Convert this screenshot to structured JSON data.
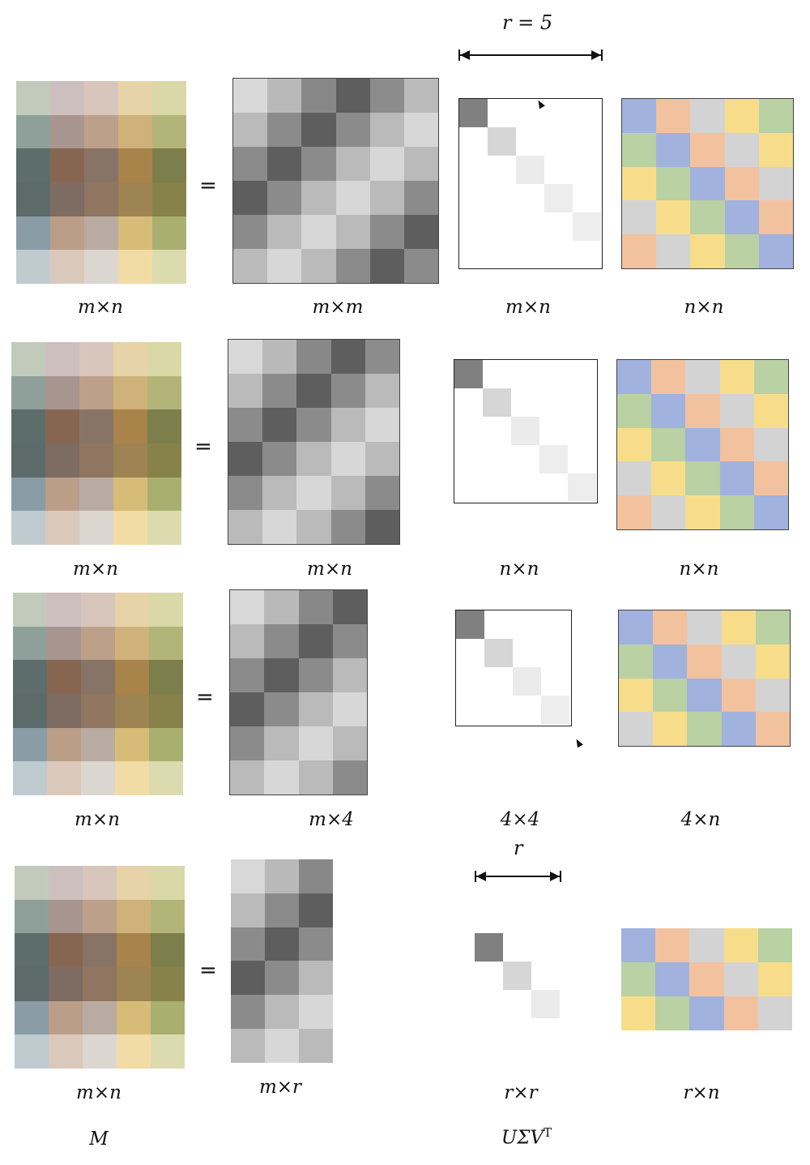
{
  "colors": {
    "photo": [
      [
        "#c2cbbb",
        "#cdbfbe",
        "#d8c6bd",
        "#e7d3a8",
        "#dad8a6"
      ],
      [
        "#8fa09a",
        "#a9958f",
        "#bca08a",
        "#cfb27a",
        "#b3b478"
      ],
      [
        "#5d6d6b",
        "#876651",
        "#887467",
        "#a8844a",
        "#7c7e4c"
      ],
      [
        "#5c6b69",
        "#7e6b62",
        "#907560",
        "#9d8452",
        "#878249"
      ],
      [
        "#8a9da6",
        "#bb9e88",
        "#b9aba2",
        "#d7bc78",
        "#a9b06f"
      ],
      [
        "#bfcbcf",
        "#dac9bb",
        "#dcd6d0",
        "#f2dca6",
        "#dcdbb0"
      ]
    ],
    "gray_u": [
      [
        "#d8d8d8",
        "#b9b9b9",
        "#888888",
        "#5e5e5e",
        "#8c8c8c",
        "#bababa"
      ],
      [
        "#bababa",
        "#8b8b8b",
        "#5e5e5e",
        "#8b8b8b",
        "#bababa",
        "#d7d7d7"
      ],
      [
        "#8b8b8b",
        "#5e5e5e",
        "#8b8b8b",
        "#bababa",
        "#d7d7d7",
        "#bababa"
      ],
      [
        "#5e5e5e",
        "#8b8b8b",
        "#bababa",
        "#d7d7d7",
        "#bababa",
        "#8b8b8b"
      ],
      [
        "#8b8b8b",
        "#bababa",
        "#d7d7d7",
        "#bababa",
        "#8b8b8b",
        "#5e5e5e"
      ],
      [
        "#bababa",
        "#d7d7d7",
        "#bababa",
        "#8b8b8b",
        "#5e5e5e",
        "#8b8b8b"
      ]
    ],
    "sigma_shades": [
      "#808080",
      "#d6d6d6",
      "#ebebeb",
      "#ededed",
      "#ededed"
    ],
    "v_palette": {
      "B": "#a1b2de",
      "O": "#f2c29f",
      "G": "#d3d3d3",
      "Y": "#f7dd8a",
      "N": "#b9d1a3"
    },
    "v_pattern": [
      [
        "B",
        "O",
        "G",
        "Y",
        "N"
      ],
      [
        "N",
        "B",
        "O",
        "G",
        "Y"
      ],
      [
        "Y",
        "N",
        "B",
        "O",
        "G"
      ],
      [
        "G",
        "Y",
        "N",
        "B",
        "O"
      ],
      [
        "O",
        "G",
        "Y",
        "N",
        "B"
      ]
    ]
  },
  "rows": [
    {
      "equals": "=",
      "labels": [
        "m×n",
        "m×m",
        "m×n",
        "n×n"
      ]
    },
    {
      "equals": "=",
      "labels": [
        "m×n",
        "m×n",
        "n×n",
        "n×n"
      ]
    },
    {
      "equals": "=",
      "labels": [
        "m×n",
        "m×4",
        "4×4",
        "4×n"
      ]
    },
    {
      "equals": "=",
      "labels": [
        "m×n",
        "m×r",
        "r×r",
        "r×n"
      ]
    }
  ],
  "annotations": {
    "r_equals": "r = 5",
    "r_symbol": "r"
  },
  "footer": {
    "left": "M",
    "right": "UΣV"
  },
  "superscript": "T"
}
